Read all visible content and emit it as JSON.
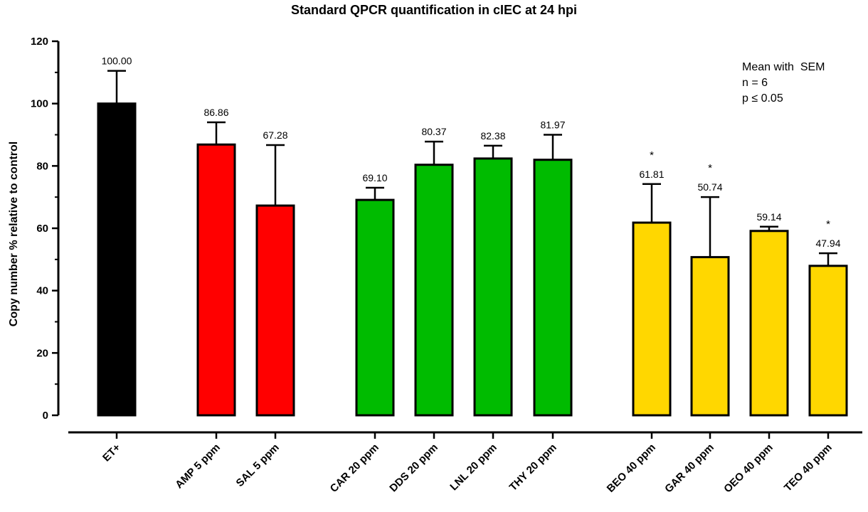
{
  "chart_data": {
    "type": "bar",
    "title": "Standard QPCR quantification in cIEC at 24 hpi",
    "ylabel": "Copy number % relative to control",
    "xlabel": "",
    "ylim": [
      0,
      120
    ],
    "yticks": [
      0,
      20,
      40,
      60,
      80,
      100,
      120
    ],
    "categories": [
      "ET+",
      "AMP 5 ppm",
      "SAL 5 ppm",
      "CAR 20 ppm",
      "DDS 20 ppm",
      "LNL 20 ppm",
      "THY 20 ppm",
      "BEO 40 ppm",
      "GAR 40 ppm",
      "OEO 40 ppm",
      "TEO 40 ppm"
    ],
    "values": [
      100.0,
      86.86,
      67.28,
      69.1,
      80.37,
      82.38,
      81.97,
      61.81,
      50.74,
      59.14,
      47.94
    ],
    "value_labels": [
      "100.00",
      "86.86",
      "67.28",
      "69.10",
      "80.37",
      "82.38",
      "81.97",
      "61.81",
      "50.74",
      "59.14",
      "47.94"
    ],
    "error_upper": [
      110.5,
      94.0,
      86.7,
      73.0,
      87.8,
      86.5,
      90.0,
      74.2,
      70.0,
      60.5,
      52.0
    ],
    "significance": [
      "",
      "",
      "",
      "",
      "",
      "",
      "",
      "*",
      "*",
      "",
      "*"
    ],
    "groups": [
      0,
      1,
      1,
      2,
      2,
      2,
      2,
      3,
      3,
      3,
      3
    ],
    "colors": [
      "#000000",
      "#ff0000",
      "#ff0000",
      "#00bb00",
      "#00bb00",
      "#00bb00",
      "#00bb00",
      "#ffd700",
      "#ffd700",
      "#ffd700",
      "#ffd700"
    ],
    "grid": false,
    "legend": "none",
    "annotation": [
      "Mean with  SEM",
      "n = 6",
      "p ≤ 0.05"
    ]
  }
}
